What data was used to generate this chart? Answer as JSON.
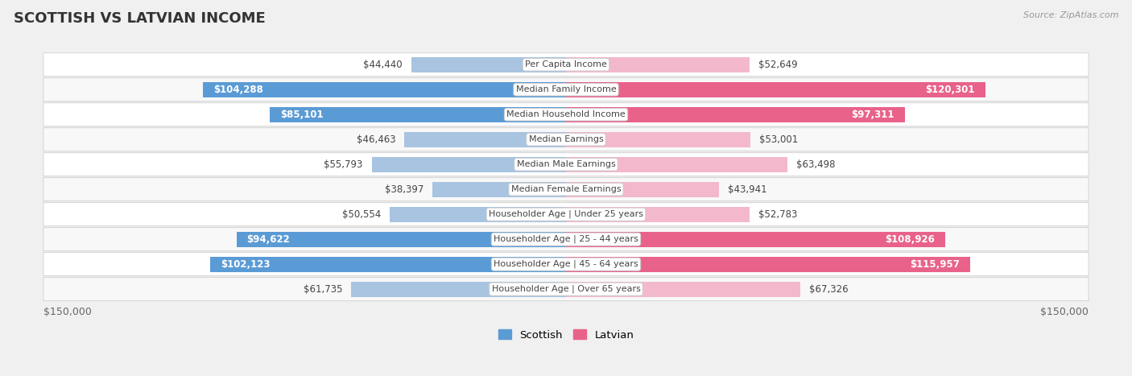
{
  "title": "SCOTTISH VS LATVIAN INCOME",
  "source": "Source: ZipAtlas.com",
  "categories": [
    "Per Capita Income",
    "Median Family Income",
    "Median Household Income",
    "Median Earnings",
    "Median Male Earnings",
    "Median Female Earnings",
    "Householder Age | Under 25 years",
    "Householder Age | 25 - 44 years",
    "Householder Age | 45 - 64 years",
    "Householder Age | Over 65 years"
  ],
  "scottish": [
    44440,
    104288,
    85101,
    46463,
    55793,
    38397,
    50554,
    94622,
    102123,
    61735
  ],
  "latvian": [
    52649,
    120301,
    97311,
    53001,
    63498,
    43941,
    52783,
    108926,
    115957,
    67326
  ],
  "scottish_labels": [
    "$44,440",
    "$104,288",
    "$85,101",
    "$46,463",
    "$55,793",
    "$38,397",
    "$50,554",
    "$94,622",
    "$102,123",
    "$61,735"
  ],
  "latvian_labels": [
    "$52,649",
    "$120,301",
    "$97,311",
    "$53,001",
    "$63,498",
    "$43,941",
    "$52,783",
    "$108,926",
    "$115,957",
    "$67,326"
  ],
  "scottish_color_normal": "#a8c4e0",
  "scottish_color_highlight": "#5b9bd5",
  "latvian_color_normal": "#f4b8cc",
  "latvian_color_highlight": "#e8628a",
  "scottish_highlight": [
    false,
    true,
    true,
    false,
    false,
    false,
    false,
    true,
    true,
    false
  ],
  "latvian_highlight": [
    false,
    true,
    true,
    false,
    false,
    false,
    false,
    true,
    true,
    false
  ],
  "max_value": 150000,
  "background_color": "#f0f0f0",
  "row_bg_light": "#f8f8f8",
  "row_bg_white": "#ffffff",
  "title_fontsize": 13,
  "val_fontsize": 8.5,
  "cat_fontsize": 8.0,
  "axis_label": "$150,000",
  "legend_scottish": "Scottish",
  "legend_latvian": "Latvian",
  "inside_label_threshold": 75000
}
